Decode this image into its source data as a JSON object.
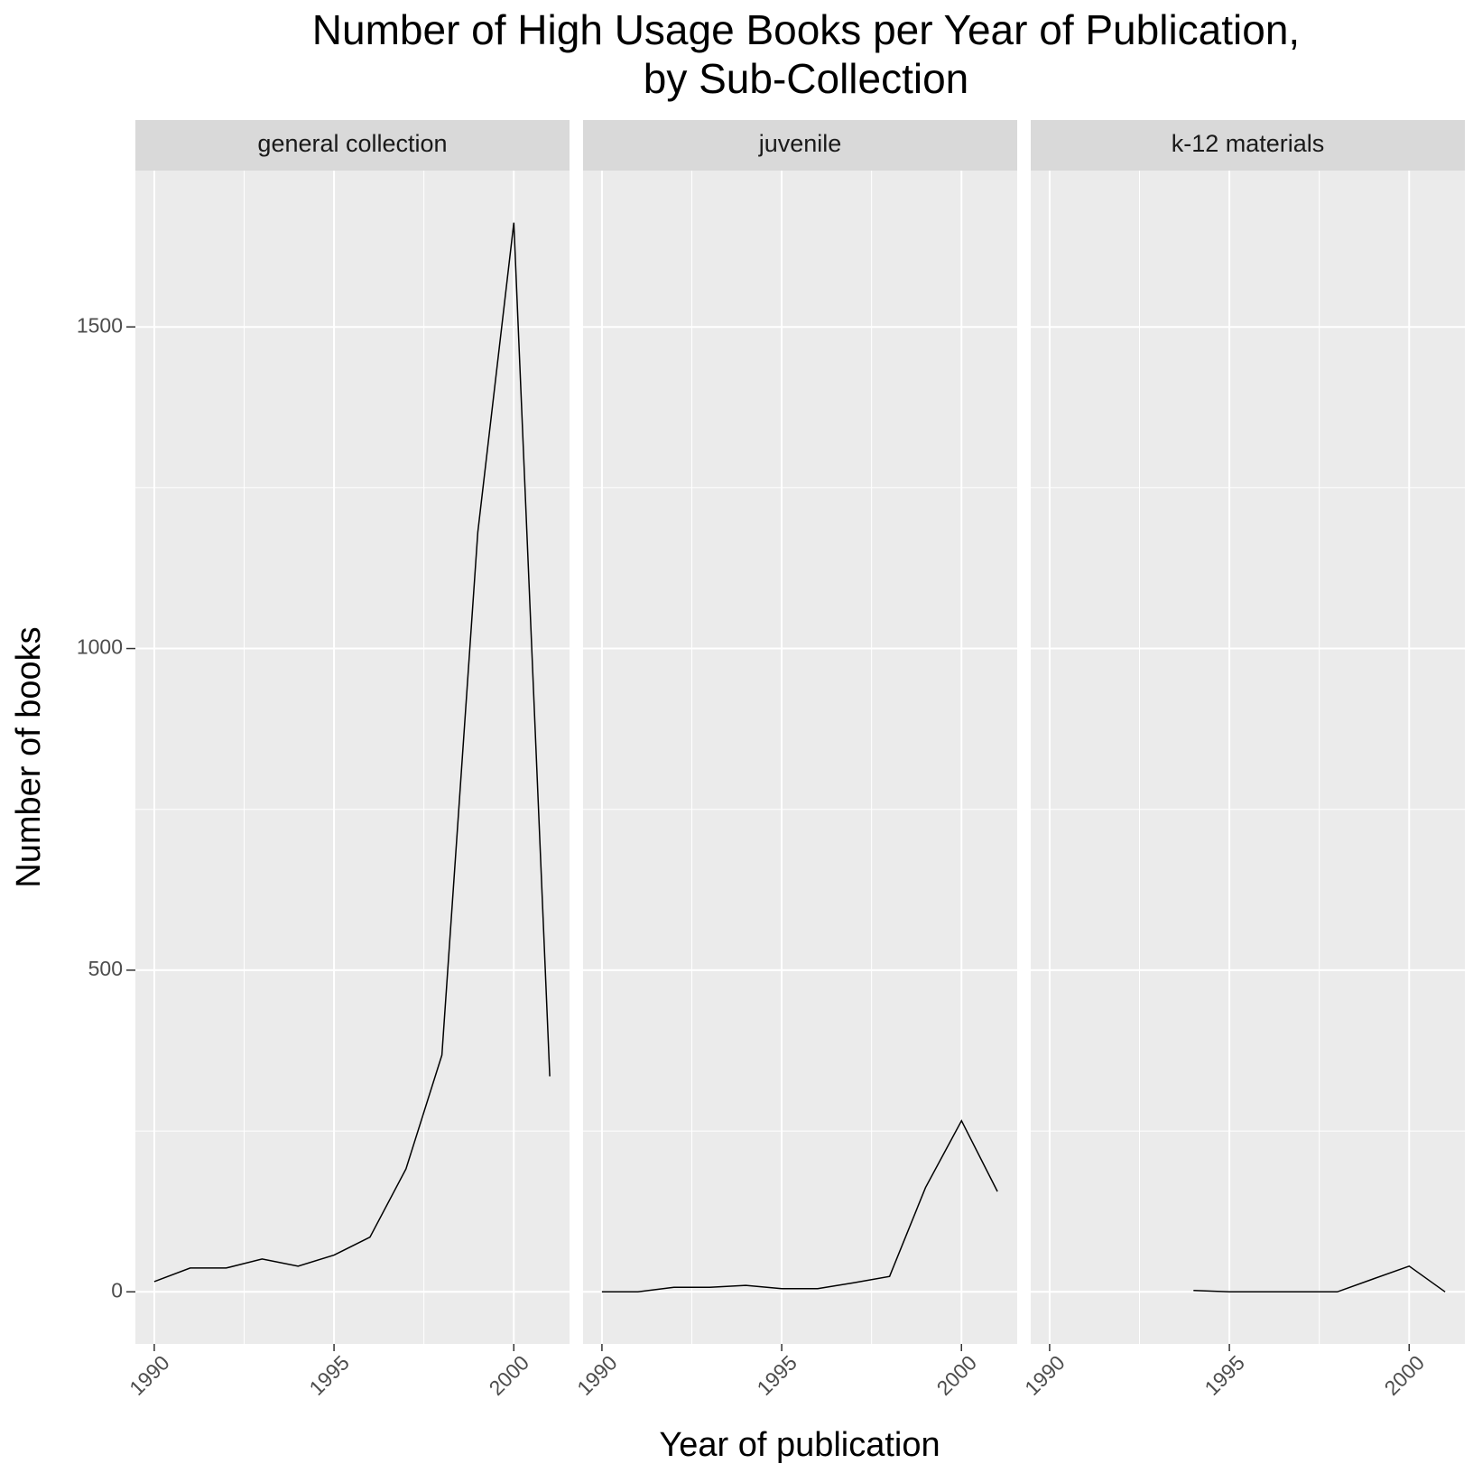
{
  "chart_data": {
    "type": "line",
    "title": "Number of High Usage Books per Year of Publication,",
    "subtitle": "by Sub-Collection",
    "x_label": "Year of publication",
    "y_label": "Number of books",
    "xlim": [
      1989.475,
      2001.55
    ],
    "xticks": [
      1990,
      1995,
      2000
    ],
    "ylim": [
      -81,
      1743
    ],
    "yticks": [
      0,
      500,
      1000,
      1500
    ],
    "grid": true,
    "color": "#000000",
    "facets": [
      {
        "name": "general collection",
        "x": [
          1990,
          1991,
          1992,
          1993,
          1994,
          1995,
          1996,
          1997,
          1998,
          1999,
          2000,
          2001
        ],
        "values": [
          16,
          37,
          37,
          51,
          40,
          57,
          85,
          191,
          368,
          1181,
          1662,
          335
        ]
      },
      {
        "name": "juvenile",
        "x": [
          1990,
          1991,
          1992,
          1993,
          1994,
          1995,
          1996,
          1997,
          1998,
          1999,
          2000,
          2001
        ],
        "values": [
          0,
          0,
          7,
          7,
          10,
          5,
          5,
          14,
          24,
          162,
          266,
          156
        ]
      },
      {
        "name": "k-12 materials",
        "x": [
          1994,
          1995,
          1996,
          1997,
          1998,
          1999,
          2000,
          2001
        ],
        "values": [
          2,
          0,
          0,
          0,
          0,
          20,
          40,
          0
        ]
      }
    ]
  }
}
